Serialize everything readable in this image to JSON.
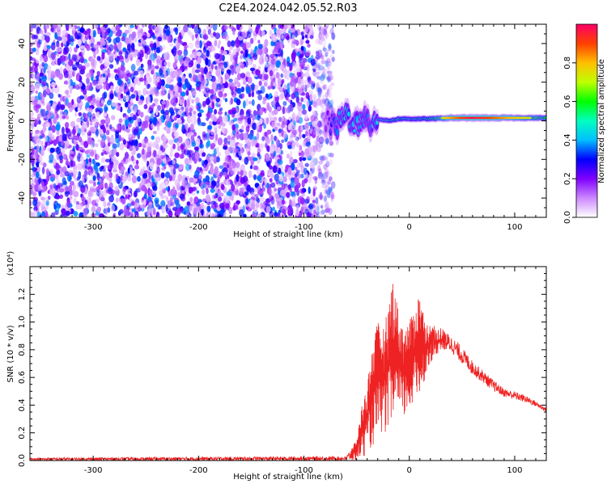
{
  "title": "C2E4.2024.042.05.52.R03",
  "chart_data": [
    {
      "type": "heatmap",
      "title": "",
      "xlabel": "Height of straight line (km)",
      "ylabel": "Frequency (Hz)",
      "xlim": [
        -360,
        130
      ],
      "ylim": [
        -50,
        50
      ],
      "xticks": [
        -300,
        -200,
        -100,
        0,
        100
      ],
      "yticks": [
        -40,
        -20,
        0,
        20,
        40
      ],
      "noise_region_x": [
        -360,
        -80
      ],
      "transition_region_x": [
        -80,
        -30
      ],
      "signal_line_frequency_hz": 1.5,
      "signal_profile": [
        {
          "x": -80,
          "amp": 0.15,
          "freq": 0
        },
        {
          "x": -70,
          "amp": 0.35,
          "freq": -3
        },
        {
          "x": -60,
          "amp": 0.45,
          "freq": 3
        },
        {
          "x": -50,
          "amp": 0.4,
          "freq": -2
        },
        {
          "x": -40,
          "amp": 0.35,
          "freq": -1
        },
        {
          "x": -30,
          "amp": 0.45,
          "freq": 1
        },
        {
          "x": -20,
          "amp": 0.5,
          "freq": 0
        },
        {
          "x": -10,
          "amp": 0.55,
          "freq": 1
        },
        {
          "x": 0,
          "amp": 0.5,
          "freq": 1
        },
        {
          "x": 20,
          "amp": 0.55,
          "freq": 1
        },
        {
          "x": 40,
          "amp": 0.75,
          "freq": 1.5
        },
        {
          "x": 60,
          "amp": 0.9,
          "freq": 1.5
        },
        {
          "x": 80,
          "amp": 0.8,
          "freq": 1.5
        },
        {
          "x": 100,
          "amp": 0.7,
          "freq": 1.5
        },
        {
          "x": 130,
          "amp": 0.6,
          "freq": 1.5
        }
      ],
      "colorbar": {
        "label": "Normalized spectral amplitude",
        "range": [
          0,
          1
        ],
        "ticks": [
          "0.0",
          "0.2",
          "0.4",
          "0.6",
          "0.8"
        ],
        "colors": [
          "#ffffff",
          "#cc88ff",
          "#7f00ff",
          "#0000ff",
          "#00bfff",
          "#00ffbf",
          "#00ff00",
          "#bfff00",
          "#ffbf00",
          "#ff4000",
          "#ff0066"
        ]
      }
    },
    {
      "type": "line",
      "title": "",
      "xlabel": "Height of straight line (km)",
      "ylabel": "SNR (10 * v/v)",
      "y_multiplier": "(x10⁴)",
      "xlim": [
        -360,
        130
      ],
      "ylim": [
        0,
        1.4
      ],
      "xticks": [
        -300,
        -200,
        -100,
        0,
        100
      ],
      "yticks": [
        "0.0",
        "0.2",
        "0.4",
        "0.6",
        "0.8",
        "1.0",
        "1.2"
      ],
      "line_color": "#ee2222",
      "envelope": [
        {
          "x": -360,
          "lo": 0.0,
          "hi": 0.02
        },
        {
          "x": -60,
          "lo": 0.0,
          "hi": 0.03
        },
        {
          "x": -50,
          "lo": 0.0,
          "hi": 0.15
        },
        {
          "x": -45,
          "lo": 0.02,
          "hi": 0.4
        },
        {
          "x": -40,
          "lo": 0.05,
          "hi": 0.55
        },
        {
          "x": -35,
          "lo": 0.1,
          "hi": 0.85
        },
        {
          "x": -30,
          "lo": 0.15,
          "hi": 1.0
        },
        {
          "x": -25,
          "lo": 0.2,
          "hi": 0.95
        },
        {
          "x": -20,
          "lo": 0.2,
          "hi": 1.1
        },
        {
          "x": -15,
          "lo": 0.25,
          "hi": 1.35
        },
        {
          "x": -10,
          "lo": 0.3,
          "hi": 1.05
        },
        {
          "x": -5,
          "lo": 0.3,
          "hi": 0.95
        },
        {
          "x": 0,
          "lo": 0.35,
          "hi": 1.0
        },
        {
          "x": 10,
          "lo": 0.45,
          "hi": 1.22
        },
        {
          "x": 15,
          "lo": 0.6,
          "hi": 1.0
        },
        {
          "x": 20,
          "lo": 0.7,
          "hi": 0.98
        },
        {
          "x": 30,
          "lo": 0.8,
          "hi": 0.96
        },
        {
          "x": 40,
          "lo": 0.78,
          "hi": 0.9
        },
        {
          "x": 50,
          "lo": 0.7,
          "hi": 0.82
        },
        {
          "x": 60,
          "lo": 0.62,
          "hi": 0.72
        },
        {
          "x": 70,
          "lo": 0.56,
          "hi": 0.65
        },
        {
          "x": 80,
          "lo": 0.5,
          "hi": 0.58
        },
        {
          "x": 90,
          "lo": 0.46,
          "hi": 0.52
        },
        {
          "x": 100,
          "lo": 0.44,
          "hi": 0.5
        },
        {
          "x": 110,
          "lo": 0.42,
          "hi": 0.47
        },
        {
          "x": 120,
          "lo": 0.39,
          "hi": 0.43
        },
        {
          "x": 130,
          "lo": 0.35,
          "hi": 0.38
        }
      ]
    }
  ]
}
